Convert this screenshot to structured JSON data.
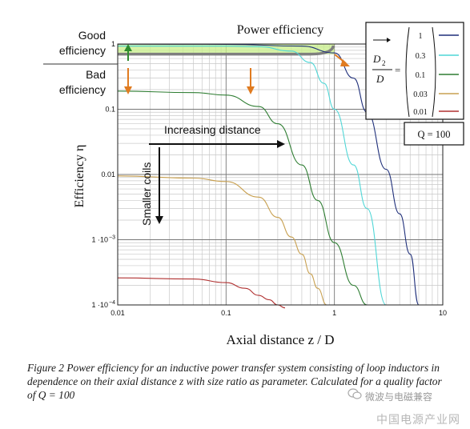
{
  "chart_data": {
    "type": "line",
    "title": "Power efficiency",
    "xlabel": "Axial distance z / D",
    "ylabel": "Efficiency η",
    "x_scale": "log",
    "y_scale": "log",
    "xlim": [
      0.01,
      10
    ],
    "ylim": [
      0.0001,
      1
    ],
    "x_ticks": [
      {
        "value": 0.01,
        "label": "0.01"
      },
      {
        "value": 0.1,
        "label": "0.1"
      },
      {
        "value": 1,
        "label": "1"
      },
      {
        "value": 10,
        "label": "10"
      }
    ],
    "y_ticks": [
      {
        "value": 1,
        "label": "1"
      },
      {
        "value": 0.1,
        "label": "0.1"
      },
      {
        "value": 0.01,
        "label": "0.01"
      },
      {
        "value": 0.001,
        "label": "1 ·10"
      },
      {
        "value": 0.0001,
        "label": "1 ·10"
      }
    ],
    "y_tick_exponents": [
      "−3",
      "−4"
    ],
    "grid": true,
    "series": [
      {
        "name": "1",
        "color": "#1f2f7a",
        "x": [
          0.01,
          0.1,
          0.5,
          1,
          1.5,
          2,
          3,
          4,
          5,
          6
        ],
        "y": [
          0.995,
          0.99,
          0.93,
          0.73,
          0.3,
          0.09,
          0.012,
          0.0025,
          0.0006,
          0.0001
        ]
      },
      {
        "name": "0.3",
        "color": "#4fd6d6",
        "x": [
          0.01,
          0.1,
          0.2,
          0.4,
          0.6,
          0.8,
          1,
          1.5,
          2,
          3
        ],
        "y": [
          0.93,
          0.93,
          0.91,
          0.78,
          0.52,
          0.25,
          0.1,
          0.014,
          0.003,
          0.0001
        ]
      },
      {
        "name": "0.1",
        "color": "#2e7d32",
        "x": [
          0.01,
          0.05,
          0.1,
          0.2,
          0.3,
          0.5,
          0.7,
          1,
          1.5,
          2
        ],
        "y": [
          0.19,
          0.18,
          0.165,
          0.11,
          0.06,
          0.014,
          0.004,
          0.0009,
          0.0002,
          0.0001
        ]
      },
      {
        "name": "0.03",
        "color": "#c8a050",
        "x": [
          0.01,
          0.05,
          0.1,
          0.2,
          0.3,
          0.4,
          0.5,
          0.6,
          0.7,
          0.85
        ],
        "y": [
          0.0095,
          0.0088,
          0.0078,
          0.0045,
          0.0022,
          0.0011,
          0.0006,
          0.0003,
          0.00018,
          0.0001
        ]
      },
      {
        "name": "0.01",
        "color": "#b03030",
        "x": [
          0.01,
          0.05,
          0.1,
          0.15,
          0.2,
          0.25,
          0.3,
          0.35
        ],
        "y": [
          0.00026,
          0.00025,
          0.00022,
          0.00018,
          0.00014,
          0.00012,
          0.0001,
          9e-05
        ]
      }
    ],
    "annotations": {
      "good": "Good efficiency",
      "bad": "Bad efficiency",
      "increasing_distance": "Increasing distance",
      "smaller_coils": "Smaller coils",
      "legend_lhs_top": "D",
      "legend_lhs_sub": "2",
      "legend_lhs_bottom": "D",
      "legend_eq": "=",
      "q_box": "Q = 100"
    },
    "legend_placement": "top-right",
    "good_band_color": "#c8ef8a",
    "arrow_colors": {
      "good_up": "#2e8b2e",
      "bad_down": "#e07b20"
    }
  },
  "caption": "Figure 2 Power efficiency for an inductive power transfer system consisting of loop inductors in dependence on their axial distance z with size ratio as parameter. Calculated for a quality factor of Q = 100",
  "watermark": {
    "line1": "微波与电磁兼容",
    "line2": "中国电源产业网"
  }
}
